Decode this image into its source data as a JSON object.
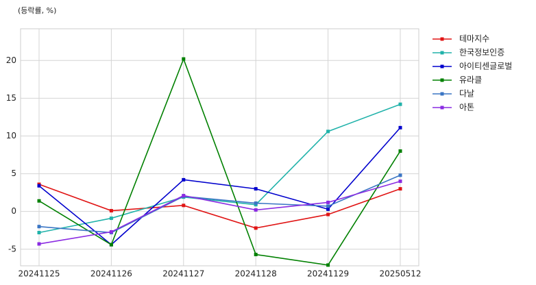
{
  "chart_data": {
    "type": "line",
    "annotation": "(등락률, %)",
    "categories": [
      "20241125",
      "20241126",
      "20241127",
      "20241128",
      "20241129",
      "20250512"
    ],
    "series": [
      {
        "name": "테마지수",
        "color": "#e01414",
        "values": [
          3.6,
          0.1,
          0.8,
          -2.2,
          -0.4,
          3.0
        ]
      },
      {
        "name": "한국정보인증",
        "color": "#20b2aa",
        "values": [
          -2.8,
          -0.9,
          1.9,
          0.9,
          10.6,
          14.2
        ]
      },
      {
        "name": "아이티센글로벌",
        "color": "#0000cd",
        "values": [
          3.4,
          -4.4,
          4.2,
          3.0,
          0.3,
          11.1
        ]
      },
      {
        "name": "유라클",
        "color": "#008000",
        "values": [
          1.4,
          -4.4,
          20.2,
          -5.7,
          -7.1,
          8.0
        ]
      },
      {
        "name": "다날",
        "color": "#3a75c4",
        "values": [
          -2.0,
          -2.8,
          2.0,
          1.1,
          0.7,
          4.8
        ]
      },
      {
        "name": "아톤",
        "color": "#8a2be2",
        "values": [
          -4.3,
          -2.7,
          2.1,
          0.2,
          1.2,
          4.0
        ]
      }
    ],
    "ylim": [
      -7.2,
      24.2
    ],
    "yticks": [
      -5,
      0,
      5,
      10,
      15,
      20
    ],
    "grid": true,
    "legend": "right"
  }
}
